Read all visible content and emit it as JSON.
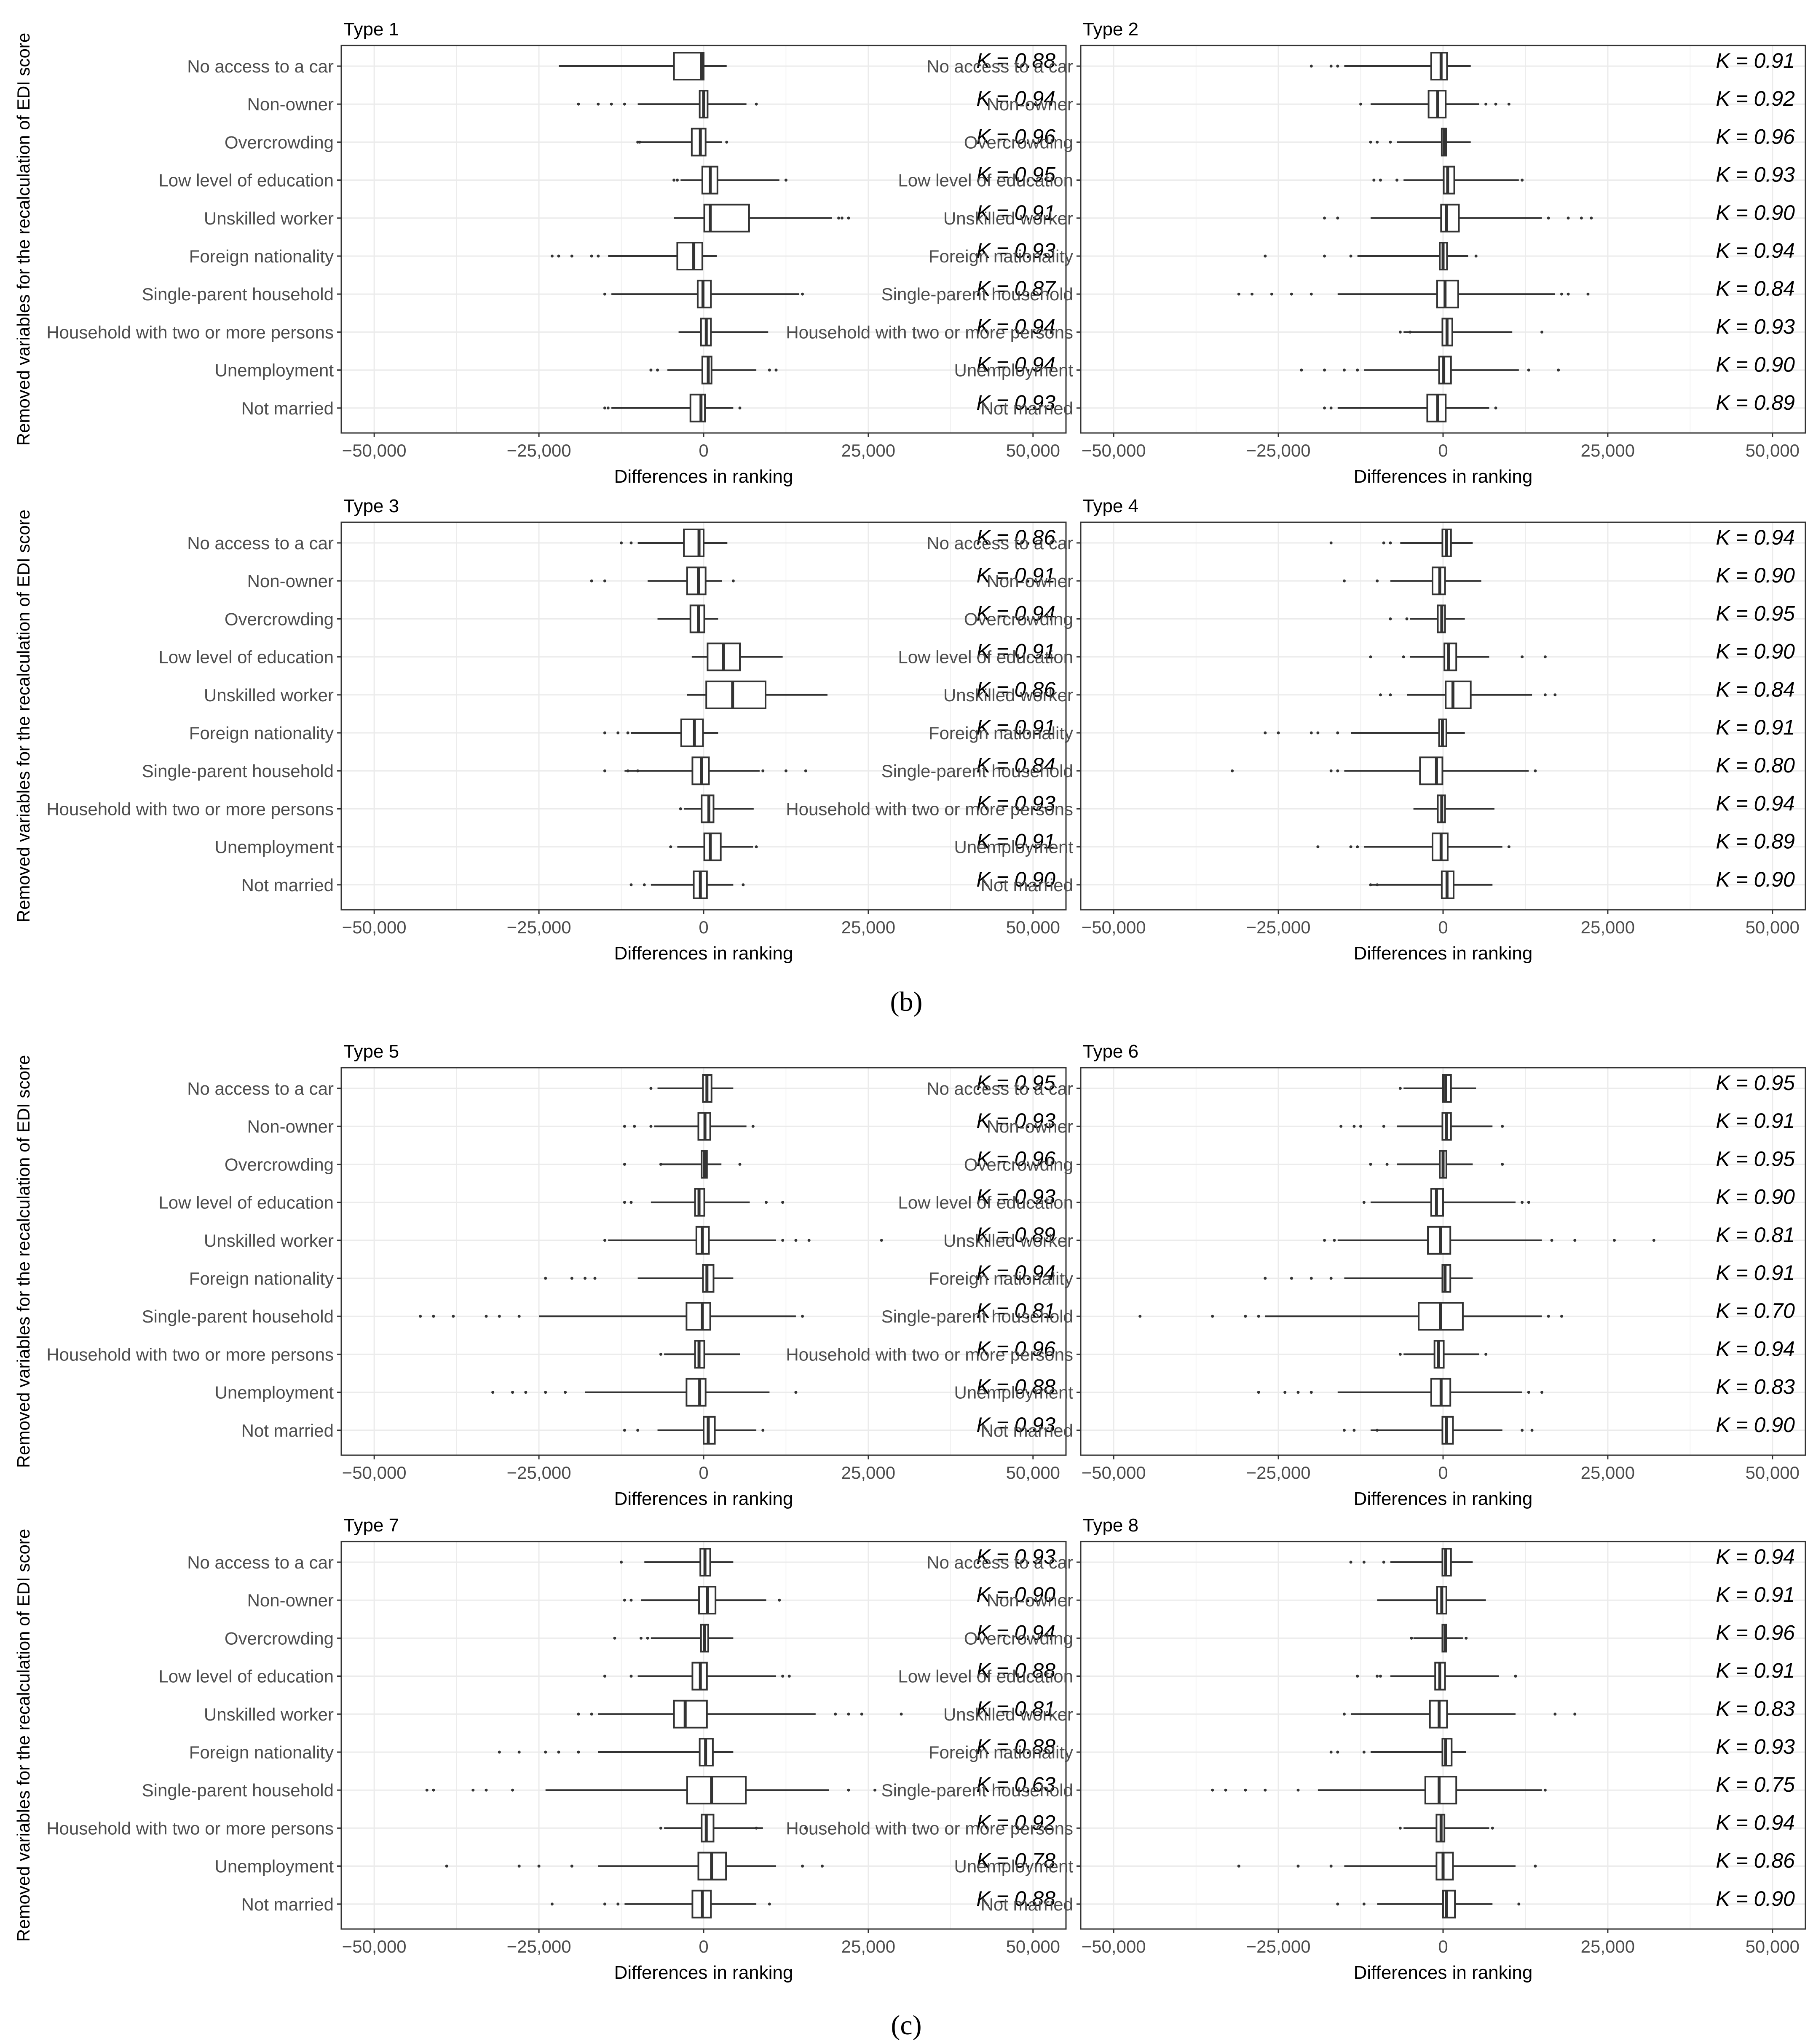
{
  "figure_labels": [
    "(b)",
    "(c)"
  ],
  "chart_data": {
    "type": "boxplot",
    "xlabel": "Differences in ranking",
    "ylabel": "Removed variables for the recalculation of EDI score",
    "xlim": [
      -55000,
      55000
    ],
    "x_ticks": [
      -50000,
      -25000,
      0,
      25000,
      50000
    ],
    "x_tick_labels": [
      "−50,000",
      "−25,000",
      "0",
      "25,000",
      "50,000"
    ],
    "grid": true,
    "categories": [
      "No access to a car",
      "Non-owner",
      "Overcrowding",
      "Low level of education",
      "Unskilled worker",
      "Foreign nationality",
      "Single-parent household",
      "Household with two or more persons",
      "Unemployment",
      "Not married"
    ],
    "kappa_prefix": "K = ",
    "panels": [
      {
        "title": "Type 1",
        "kappa": [
          "0.88",
          "0.94",
          "0.96",
          "0.95",
          "0.91",
          "0.93",
          "0.87",
          "0.94",
          "0.94",
          "0.93"
        ],
        "boxes": [
          [
            -4500,
            -300,
            0,
            3500,
            -22000
          ],
          [
            -600,
            0,
            600,
            6500,
            -10000
          ],
          [
            -1800,
            -500,
            300,
            2800,
            -9500
          ],
          [
            -200,
            1000,
            2100,
            11500,
            -3500
          ],
          [
            100,
            1000,
            6900,
            19500,
            -4500
          ],
          [
            -4000,
            -1500,
            -200,
            2000,
            -14500
          ],
          [
            -900,
            -100,
            1100,
            14500,
            -14000
          ],
          [
            -400,
            400,
            1100,
            9800,
            -3800
          ],
          [
            -200,
            700,
            1200,
            8000,
            -5500
          ],
          [
            -2000,
            -400,
            200,
            4500,
            -14000
          ]
        ],
        "outliers": [
          [],
          [
            -19000,
            -16000,
            -14000,
            -12000,
            8000
          ],
          [
            -10000,
            -9700,
            3500
          ],
          [
            -4500,
            -4000,
            12500
          ],
          [
            20500,
            21000,
            22000
          ],
          [
            -23000,
            -22000,
            -20000,
            -17000,
            -16000
          ],
          [
            -15000,
            15000
          ],
          [],
          [
            -8000,
            -7000,
            10000,
            11000
          ],
          [
            -15000,
            -14500,
            5500
          ]
        ]
      },
      {
        "title": "Type 2",
        "kappa": [
          "0.91",
          "0.92",
          "0.96",
          "0.93",
          "0.90",
          "0.94",
          "0.84",
          "0.93",
          "0.90",
          "0.89"
        ],
        "boxes": [
          [
            -1800,
            -300,
            600,
            4200,
            -15000
          ],
          [
            -2200,
            -800,
            400,
            5500,
            -11000
          ],
          [
            -200,
            200,
            500,
            4200,
            -7000
          ],
          [
            100,
            700,
            1700,
            11500,
            -6000
          ],
          [
            -300,
            500,
            2400,
            15000,
            -11000
          ],
          [
            -500,
            0,
            600,
            3800,
            -13000
          ],
          [
            -900,
            300,
            2300,
            17000,
            -16000
          ],
          [
            -100,
            600,
            1400,
            10500,
            -6000
          ],
          [
            -600,
            100,
            1200,
            11500,
            -12000
          ],
          [
            -2400,
            -800,
            400,
            7000,
            -16000
          ]
        ],
        "outliers": [
          [
            -20000,
            -17000,
            -16000
          ],
          [
            -12500,
            6500,
            8000,
            10000
          ],
          [
            -11000,
            -10000,
            -8000
          ],
          [
            -10500,
            -9500,
            -7000,
            12000
          ],
          [
            -18000,
            -16000,
            16000,
            19000,
            21000,
            22500
          ],
          [
            -27000,
            -18000,
            -14000,
            5000
          ],
          [
            -31000,
            -29000,
            -26000,
            -23000,
            -20000,
            18000,
            19000,
            22000
          ],
          [
            -6500,
            -5000,
            15000
          ],
          [
            -21500,
            -18000,
            -15000,
            -13000,
            13000,
            17500
          ],
          [
            -18000,
            -17000,
            8000
          ]
        ]
      },
      {
        "title": "Type 3",
        "kappa": [
          "0.86",
          "0.91",
          "0.94",
          "0.91",
          "0.86",
          "0.91",
          "0.84",
          "0.93",
          "0.91",
          "0.90"
        ],
        "boxes": [
          [
            -3000,
            -700,
            0,
            3600,
            -10000
          ],
          [
            -2500,
            -800,
            300,
            2800,
            -8500
          ],
          [
            -2000,
            -800,
            100,
            2200,
            -7000
          ],
          [
            600,
            3000,
            5500,
            12000,
            -1800
          ],
          [
            400,
            4400,
            9400,
            18800,
            -2500
          ],
          [
            -3400,
            -1400,
            -100,
            2200,
            -11000
          ],
          [
            -1700,
            -300,
            800,
            8500,
            -12000
          ],
          [
            -300,
            800,
            1500,
            7600,
            -3000
          ],
          [
            100,
            1000,
            2600,
            7500,
            -4000
          ],
          [
            -1500,
            -500,
            500,
            4500,
            -8000
          ]
        ],
        "outliers": [
          [
            -12500,
            -11000
          ],
          [
            -17000,
            -15000,
            4500
          ],
          [],
          [],
          [],
          [
            -15000,
            -13000,
            -11500
          ],
          [
            -15000,
            -11500,
            -10000,
            9000,
            12500,
            15500
          ],
          [
            -3500
          ],
          [
            -5000,
            8000
          ],
          [
            -11000,
            -9000,
            6000
          ]
        ]
      },
      {
        "title": "Type 4",
        "kappa": [
          "0.94",
          "0.90",
          "0.95",
          "0.90",
          "0.84",
          "0.91",
          "0.80",
          "0.94",
          "0.89",
          "0.90"
        ],
        "boxes": [
          [
            -100,
            500,
            1200,
            4500,
            -6500
          ],
          [
            -1600,
            -500,
            300,
            5800,
            -8000
          ],
          [
            -800,
            -200,
            300,
            3300,
            -5000
          ],
          [
            200,
            800,
            2000,
            7000,
            -5000
          ],
          [
            400,
            1500,
            4200,
            13500,
            -5500
          ],
          [
            -600,
            -100,
            500,
            3300,
            -14000
          ],
          [
            -3500,
            -1000,
            -100,
            13000,
            -15000
          ],
          [
            -800,
            -200,
            300,
            7800,
            -4500
          ],
          [
            -1600,
            -300,
            700,
            9000,
            -12000
          ],
          [
            -200,
            600,
            1600,
            7500,
            -11000
          ]
        ],
        "outliers": [
          [
            -17000,
            -9000,
            -8000
          ],
          [
            -15000,
            -10000
          ],
          [
            -8000,
            -5500
          ],
          [
            -11000,
            -6000,
            12000,
            15500
          ],
          [
            -9500,
            -8000,
            15500,
            17000
          ],
          [
            -27000,
            -25000,
            -20000,
            -19000,
            -16000
          ],
          [
            -32000,
            -17000,
            -16000,
            14000
          ],
          [],
          [
            -19000,
            -14000,
            -13000,
            10000
          ],
          [
            -11000,
            -10000
          ]
        ]
      },
      {
        "title": "Type 5",
        "kappa": [
          "0.95",
          "0.93",
          "0.96",
          "0.93",
          "0.89",
          "0.94",
          "0.81",
          "0.96",
          "0.88",
          "0.93"
        ],
        "boxes": [
          [
            -100,
            500,
            1200,
            4500,
            -7000
          ],
          [
            -800,
            200,
            1000,
            6500,
            -7500
          ],
          [
            -300,
            100,
            500,
            2700,
            -6500
          ],
          [
            -1300,
            -700,
            100,
            7000,
            -8000
          ],
          [
            -1100,
            -200,
            800,
            11000,
            -14500
          ],
          [
            -100,
            500,
            1500,
            4500,
            -10000
          ],
          [
            -2600,
            -200,
            1000,
            14000,
            -25000
          ],
          [
            -1300,
            -700,
            100,
            5500,
            -6000
          ],
          [
            -2600,
            -600,
            300,
            10000,
            -18000
          ],
          [
            0,
            700,
            1700,
            8000,
            -7000
          ]
        ],
        "outliers": [
          [
            -8000
          ],
          [
            -12000,
            -10500,
            -8000,
            7500
          ],
          [
            -12000,
            -6500,
            5500
          ],
          [
            -12000,
            -11000,
            9500,
            12000
          ],
          [
            -15000,
            12000,
            14000,
            16000,
            27000
          ],
          [
            -24000,
            -20000,
            -18000,
            -16500
          ],
          [
            -43000,
            -41000,
            -38000,
            -33000,
            -31000,
            -28000,
            15000
          ],
          [
            -6500
          ],
          [
            -32000,
            -29000,
            -27000,
            -24000,
            -21000,
            14000
          ],
          [
            -12000,
            -10000,
            9000
          ]
        ]
      },
      {
        "title": "Type 6",
        "kappa": [
          "0.95",
          "0.91",
          "0.95",
          "0.90",
          "0.81",
          "0.91",
          "0.70",
          "0.94",
          "0.83",
          "0.90"
        ],
        "boxes": [
          [
            0,
            400,
            1200,
            5000,
            -6000
          ],
          [
            -100,
            500,
            1200,
            7500,
            -7000
          ],
          [
            -500,
            0,
            500,
            4500,
            -7000
          ],
          [
            -1800,
            -1000,
            0,
            11000,
            -11000
          ],
          [
            -2300,
            -400,
            1100,
            15000,
            -16000
          ],
          [
            -100,
            300,
            1100,
            4500,
            -15000
          ],
          [
            -3700,
            -400,
            3000,
            15000,
            -27000
          ],
          [
            -1300,
            -700,
            100,
            5500,
            -6000
          ],
          [
            -1800,
            -300,
            1100,
            12000,
            -16000
          ],
          [
            -100,
            500,
            1500,
            9000,
            -11000
          ]
        ],
        "outliers": [
          [
            -6500
          ],
          [
            -15500,
            -13500,
            -12500,
            -9000,
            9000
          ],
          [
            -11000,
            -8500,
            9000
          ],
          [
            -12000,
            12000,
            13000
          ],
          [
            -18000,
            -16500,
            16500,
            20000,
            26000,
            32000
          ],
          [
            -27000,
            -23000,
            -20000,
            -17000
          ],
          [
            -46000,
            -35000,
            -30000,
            -28000,
            16000,
            18000
          ],
          [
            -6500,
            6500
          ],
          [
            -28000,
            -24000,
            -22000,
            -20000,
            13000,
            15000
          ],
          [
            -15000,
            -13500,
            -10000,
            12000,
            13500
          ]
        ]
      },
      {
        "title": "Type 7",
        "kappa": [
          "0.93",
          "0.90",
          "0.94",
          "0.88",
          "0.81",
          "0.88",
          "0.63",
          "0.92",
          "0.78",
          "0.88"
        ],
        "boxes": [
          [
            -500,
            200,
            1000,
            4500,
            -9000
          ],
          [
            -700,
            600,
            1800,
            9500,
            -9500
          ],
          [
            -400,
            100,
            700,
            4500,
            -8000
          ],
          [
            -1700,
            -500,
            500,
            11000,
            -10000
          ],
          [
            -4500,
            -2800,
            500,
            17000,
            -16000
          ],
          [
            -600,
            300,
            1400,
            4500,
            -16000
          ],
          [
            -2500,
            1200,
            6400,
            19000,
            -24000
          ],
          [
            -300,
            400,
            1500,
            9000,
            -6000
          ],
          [
            -800,
            1200,
            3400,
            11000,
            -16000
          ],
          [
            -1700,
            -200,
            1100,
            8000,
            -12000
          ]
        ],
        "outliers": [
          [
            -12500
          ],
          [
            -12000,
            -11000,
            11500
          ],
          [
            -13500,
            -9500,
            -8500
          ],
          [
            -15000,
            -11000,
            12000,
            13000
          ],
          [
            -19000,
            -17000,
            20000,
            22000,
            24000,
            30000
          ],
          [
            -31000,
            -28000,
            -24000,
            -22000,
            -19000
          ],
          [
            -42000,
            -41000,
            -35000,
            -33000,
            -29000,
            22000,
            26000
          ],
          [
            -6500,
            8000,
            15500
          ],
          [
            -39000,
            -28000,
            -25000,
            -20000,
            15000,
            18000
          ],
          [
            -23000,
            -15000,
            -13000,
            10000
          ]
        ]
      },
      {
        "title": "Type 8",
        "kappa": [
          "0.94",
          "0.91",
          "0.96",
          "0.91",
          "0.83",
          "0.93",
          "0.75",
          "0.94",
          "0.86",
          "0.90"
        ],
        "boxes": [
          [
            -100,
            400,
            1200,
            4500,
            -8000
          ],
          [
            -900,
            -200,
            500,
            6500,
            -10000
          ],
          [
            -100,
            300,
            500,
            3000,
            -4500
          ],
          [
            -1200,
            -500,
            300,
            8500,
            -8000
          ],
          [
            -2000,
            -600,
            600,
            11000,
            -14000
          ],
          [
            -100,
            400,
            1300,
            3500,
            -11000
          ],
          [
            -2700,
            -600,
            2000,
            15000,
            -19000
          ],
          [
            -1000,
            -300,
            200,
            7000,
            -6000
          ],
          [
            -1000,
            0,
            1500,
            11000,
            -15000
          ],
          [
            0,
            500,
            1800,
            7500,
            -10000
          ]
        ],
        "outliers": [
          [
            -14000,
            -12000,
            -9000
          ],
          [],
          [
            -4800,
            3500
          ],
          [
            -13000,
            -10000,
            -9500,
            11000
          ],
          [
            -15000,
            17000,
            20000
          ],
          [
            -17000,
            -16000,
            -12000
          ],
          [
            -35000,
            -33000,
            -30000,
            -27000,
            -22000,
            15500
          ],
          [
            -6500,
            7500
          ],
          [
            -31000,
            -22000,
            -17000,
            14000
          ],
          [
            -16000,
            -12000,
            11500
          ]
        ]
      }
    ]
  }
}
